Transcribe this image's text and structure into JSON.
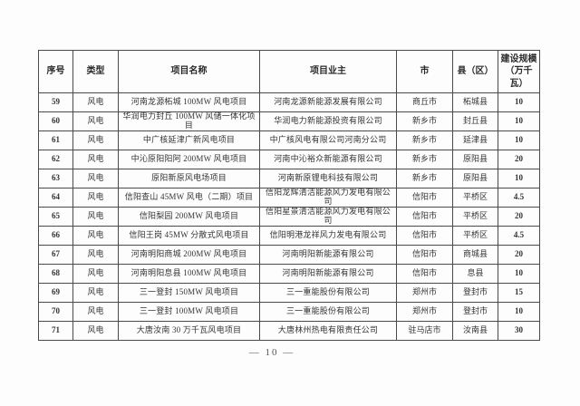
{
  "page": {
    "footer_page_number": "— 10 —"
  },
  "table": {
    "columns": [
      {
        "key": "index",
        "label": "序号"
      },
      {
        "key": "type",
        "label": "类型"
      },
      {
        "key": "name",
        "label": "项目名称"
      },
      {
        "key": "owner",
        "label": "项目业主"
      },
      {
        "key": "city",
        "label": "市"
      },
      {
        "key": "county",
        "label": "县（区）"
      },
      {
        "key": "scale",
        "label": "建设规模\n（万千瓦）"
      }
    ],
    "rows": [
      [
        "59",
        "风电",
        "河南龙源柘城 100MW 风电项目",
        "河南龙源新能源发展有限公司",
        "商丘市",
        "柘城县",
        "10"
      ],
      [
        "60",
        "风电",
        "华润电力封丘 100MW 风储一体化项目",
        "华润电力新能源投资有限公司",
        "新乡市",
        "封丘县",
        "10"
      ],
      [
        "61",
        "风电",
        "中广核延津广新风电项目",
        "中广核风电有限公司河南分公司",
        "新乡市",
        "延津县",
        "10"
      ],
      [
        "62",
        "风电",
        "中沁原阳阳阿 200MW 风电项目",
        "河南中沁裕众新能源有限公司",
        "新乡市",
        "原阳县",
        "20"
      ],
      [
        "63",
        "风电",
        "原阳新原风电场项目",
        "河南新原锂电科技有限公司",
        "新乡市",
        "原阳县",
        "10"
      ],
      [
        "64",
        "风电",
        "信阳查山 45MW 风电（二期）项目",
        "信阳龙辉清洁能源风力发电有限公司",
        "信阳市",
        "平桥区",
        "4.5"
      ],
      [
        "65",
        "风电",
        "信阳梨园 200MW 风电项目",
        "信阳星景清洁能源风力发电有限公司",
        "信阳市",
        "平桥区",
        "20"
      ],
      [
        "66",
        "风电",
        "信阳王岗 45MW 分散式风电项目",
        "信阳明港龙祥风力发电有限公司",
        "信阳市",
        "平桥区",
        "4.5"
      ],
      [
        "67",
        "风电",
        "河南明阳商城 200MW 风电项目",
        "河南明阳新能源有限公司",
        "信阳市",
        "商城县",
        "20"
      ],
      [
        "68",
        "风电",
        "河南明阳息县 100MW 风电项目",
        "河南明阳新能源有限公司",
        "信阳市",
        "息县",
        "10"
      ],
      [
        "69",
        "风电",
        "三一登封 150MW 风电项目",
        "三一重能股份有限公司",
        "郑州市",
        "登封市",
        "15"
      ],
      [
        "70",
        "风电",
        "三一登封 100MW 风电项目",
        "三一重能股份有限公司",
        "郑州市",
        "登封市",
        "10"
      ],
      [
        "71",
        "风电",
        "大唐汝南 30 万千瓦风电项目",
        "大唐林州热电有限责任公司",
        "驻马店市",
        "汝南县",
        "30"
      ]
    ]
  }
}
